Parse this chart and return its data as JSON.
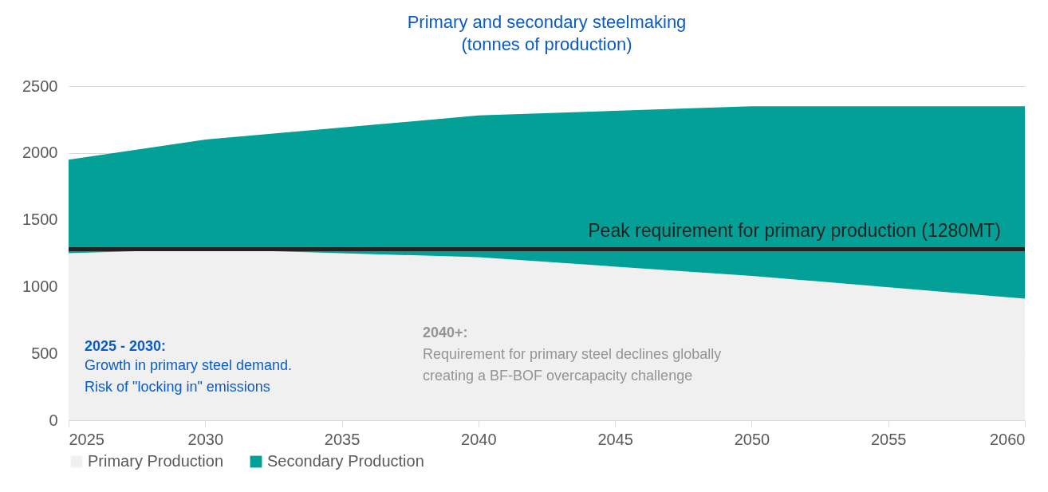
{
  "chart_data": {
    "type": "area",
    "stacked": true,
    "title": "Primary and secondary steelmaking",
    "subtitle": "(tonnes of production)",
    "x": [
      2025,
      2030,
      2040,
      2050,
      2060
    ],
    "series": [
      {
        "name": "Primary Production",
        "color": "#f0f0f0",
        "values": [
          1250,
          1280,
          1220,
          1080,
          910
        ]
      },
      {
        "name": "Secondary Production",
        "color": "#02a096",
        "values": [
          700,
          820,
          1060,
          1270,
          1440
        ]
      }
    ],
    "xlim": [
      2025,
      2060
    ],
    "xticks": [
      2025,
      2030,
      2035,
      2040,
      2045,
      2050,
      2055,
      2060
    ],
    "ylim": [
      0,
      2500
    ],
    "yticks": [
      0,
      500,
      1000,
      1500,
      2000,
      2500
    ],
    "grid": "y",
    "legend": "bottom",
    "ref_lines": [
      {
        "axis": "y",
        "value": 1280,
        "label": "Peak requirement for primary production (1280MT)",
        "color": "#222222"
      }
    ],
    "annotations": [
      "2025 - 2030:",
      "Growth in primary steel demand.\nRisk of \"locking in\" emissions",
      "2040+:",
      "Requirement for primary steel declines globally\ncreating a BF-BOF overcapacity challenge"
    ]
  }
}
